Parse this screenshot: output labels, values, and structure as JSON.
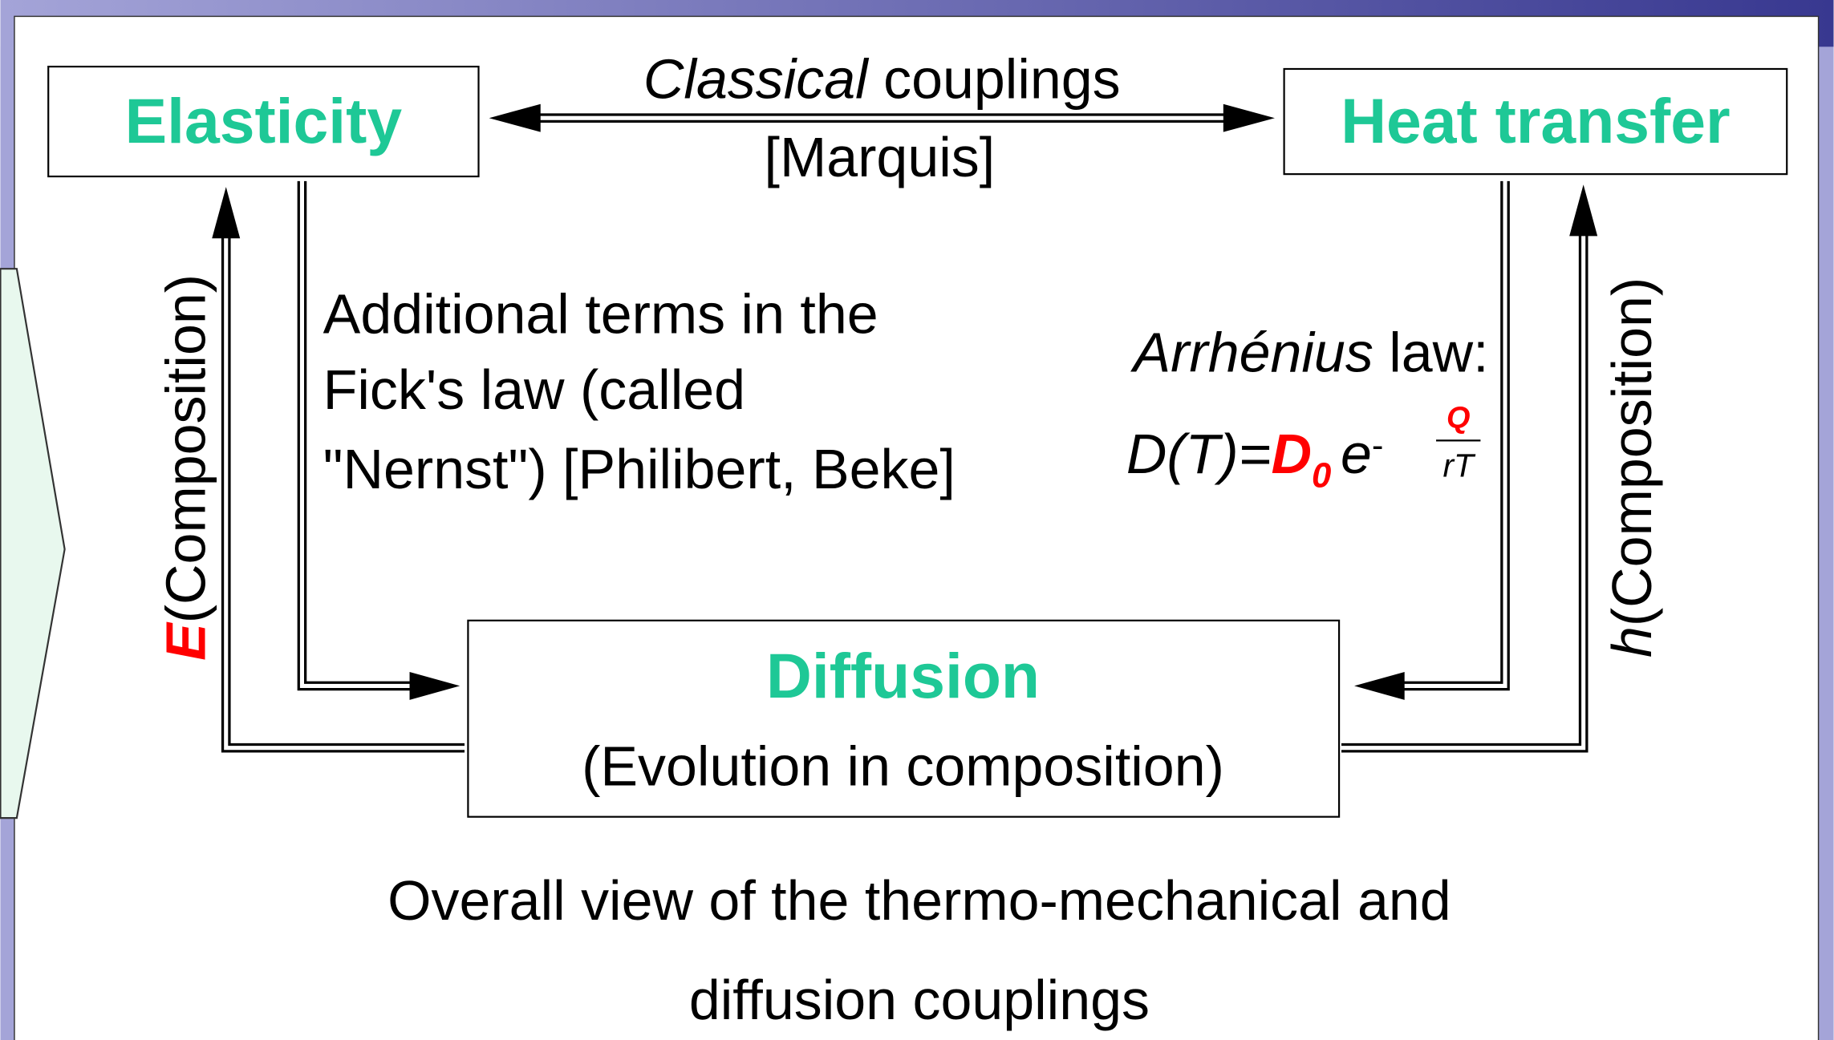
{
  "nodes": [
    {
      "label": "Elasticity"
    },
    {
      "label": "Heat transfer"
    },
    {
      "label": "Diffusion",
      "subtitle": "(Evolution in composition)"
    }
  ],
  "edges": {
    "classical": {
      "italic": "Classical",
      "text": " couplings",
      "ref": "[Marquis]"
    },
    "nernst": {
      "lines": [
        "Additional terms in the",
        "Fick's law (called",
        "\"Nernst\") [Philibert, Beke]"
      ]
    },
    "arrhenius": {
      "italic": "Arrhénius",
      "text": " law:",
      "formula": {
        "lhs": "D(T)=",
        "d": "D",
        "sub": "0",
        "e": "e",
        "minus": "-",
        "num": "Q",
        "den": "rT"
      }
    },
    "young": {
      "symbol": "E",
      "text": "(Composition)"
    },
    "exchange": {
      "symbol": "h",
      "text": "(Composition)"
    }
  },
  "caption": [
    "Overall view of the thermo-mechanical and",
    "diffusion couplings"
  ]
}
